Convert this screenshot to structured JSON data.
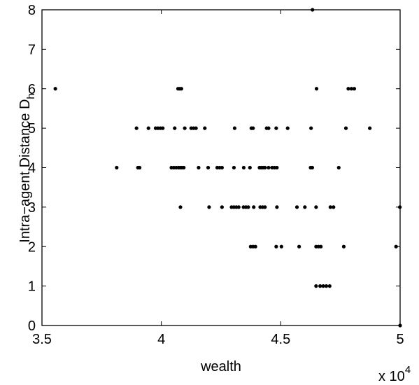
{
  "chart_data": {
    "type": "scatter",
    "xlabel": "wealth",
    "ylabel": "Intra−agent Distance D",
    "ylabel_subscript": "h",
    "x_multiplier": "x 10",
    "x_multiplier_exponent": "4",
    "xlim": [
      3.5,
      5
    ],
    "ylim": [
      0,
      8
    ],
    "x_ticks": [
      3.5,
      4,
      4.5,
      5
    ],
    "x_tick_labels": [
      "3.5",
      "4",
      "4.5",
      "5"
    ],
    "y_ticks": [
      0,
      1,
      2,
      3,
      4,
      5,
      6,
      7,
      8
    ],
    "y_tick_labels": [
      "0",
      "1",
      "2",
      "3",
      "4",
      "5",
      "6",
      "7",
      "8"
    ],
    "grid": false,
    "marker_color": "#000000",
    "points": [
      {
        "x": 3.556,
        "y": 6
      },
      {
        "x": 4.07,
        "y": 6
      },
      {
        "x": 4.077,
        "y": 6
      },
      {
        "x": 4.084,
        "y": 6
      },
      {
        "x": 4.65,
        "y": 6
      },
      {
        "x": 4.783,
        "y": 6
      },
      {
        "x": 4.796,
        "y": 6
      },
      {
        "x": 4.808,
        "y": 6
      },
      {
        "x": 3.896,
        "y": 5
      },
      {
        "x": 3.946,
        "y": 5
      },
      {
        "x": 3.976,
        "y": 5
      },
      {
        "x": 3.986,
        "y": 5
      },
      {
        "x": 3.996,
        "y": 5
      },
      {
        "x": 4.006,
        "y": 5
      },
      {
        "x": 4.056,
        "y": 5
      },
      {
        "x": 4.098,
        "y": 5
      },
      {
        "x": 4.125,
        "y": 5
      },
      {
        "x": 4.135,
        "y": 5
      },
      {
        "x": 4.145,
        "y": 5
      },
      {
        "x": 4.182,
        "y": 5
      },
      {
        "x": 4.307,
        "y": 5
      },
      {
        "x": 4.377,
        "y": 5
      },
      {
        "x": 4.384,
        "y": 5
      },
      {
        "x": 4.441,
        "y": 5
      },
      {
        "x": 4.449,
        "y": 5
      },
      {
        "x": 4.481,
        "y": 5
      },
      {
        "x": 4.529,
        "y": 5
      },
      {
        "x": 4.627,
        "y": 5
      },
      {
        "x": 4.773,
        "y": 5
      },
      {
        "x": 4.873,
        "y": 5
      },
      {
        "x": 3.813,
        "y": 4
      },
      {
        "x": 3.902,
        "y": 4
      },
      {
        "x": 3.909,
        "y": 4
      },
      {
        "x": 4.042,
        "y": 4
      },
      {
        "x": 4.052,
        "y": 4
      },
      {
        "x": 4.062,
        "y": 4
      },
      {
        "x": 4.072,
        "y": 4
      },
      {
        "x": 4.079,
        "y": 4
      },
      {
        "x": 4.086,
        "y": 4
      },
      {
        "x": 4.094,
        "y": 4
      },
      {
        "x": 4.156,
        "y": 4
      },
      {
        "x": 4.196,
        "y": 4
      },
      {
        "x": 4.234,
        "y": 4
      },
      {
        "x": 4.244,
        "y": 4
      },
      {
        "x": 4.254,
        "y": 4
      },
      {
        "x": 4.304,
        "y": 4
      },
      {
        "x": 4.345,
        "y": 4
      },
      {
        "x": 4.371,
        "y": 4
      },
      {
        "x": 4.411,
        "y": 4
      },
      {
        "x": 4.418,
        "y": 4
      },
      {
        "x": 4.426,
        "y": 4
      },
      {
        "x": 4.434,
        "y": 4
      },
      {
        "x": 4.449,
        "y": 4
      },
      {
        "x": 4.464,
        "y": 4
      },
      {
        "x": 4.474,
        "y": 4
      },
      {
        "x": 4.484,
        "y": 4
      },
      {
        "x": 4.625,
        "y": 4
      },
      {
        "x": 4.632,
        "y": 4
      },
      {
        "x": 4.743,
        "y": 4
      },
      {
        "x": 4.08,
        "y": 3
      },
      {
        "x": 4.2,
        "y": 3
      },
      {
        "x": 4.254,
        "y": 3
      },
      {
        "x": 4.294,
        "y": 3
      },
      {
        "x": 4.304,
        "y": 3
      },
      {
        "x": 4.314,
        "y": 3
      },
      {
        "x": 4.324,
        "y": 3
      },
      {
        "x": 4.344,
        "y": 3
      },
      {
        "x": 4.354,
        "y": 3
      },
      {
        "x": 4.364,
        "y": 3
      },
      {
        "x": 4.387,
        "y": 3
      },
      {
        "x": 4.414,
        "y": 3
      },
      {
        "x": 4.424,
        "y": 3
      },
      {
        "x": 4.434,
        "y": 3
      },
      {
        "x": 4.484,
        "y": 3
      },
      {
        "x": 4.568,
        "y": 3
      },
      {
        "x": 4.601,
        "y": 3
      },
      {
        "x": 4.648,
        "y": 3
      },
      {
        "x": 4.708,
        "y": 3
      },
      {
        "x": 4.721,
        "y": 3
      },
      {
        "x": 4.999,
        "y": 3
      },
      {
        "x": 4.374,
        "y": 2
      },
      {
        "x": 4.384,
        "y": 2
      },
      {
        "x": 4.394,
        "y": 2
      },
      {
        "x": 4.481,
        "y": 2
      },
      {
        "x": 4.503,
        "y": 2
      },
      {
        "x": 4.577,
        "y": 2
      },
      {
        "x": 4.648,
        "y": 2
      },
      {
        "x": 4.658,
        "y": 2
      },
      {
        "x": 4.668,
        "y": 2
      },
      {
        "x": 4.764,
        "y": 2
      },
      {
        "x": 4.983,
        "y": 2
      },
      {
        "x": 4.648,
        "y": 1
      },
      {
        "x": 4.665,
        "y": 1
      },
      {
        "x": 4.678,
        "y": 1
      },
      {
        "x": 4.691,
        "y": 1
      },
      {
        "x": 4.705,
        "y": 1
      },
      {
        "x": 4.633,
        "y": 8
      },
      {
        "x": 5.0,
        "y": 0
      }
    ]
  }
}
